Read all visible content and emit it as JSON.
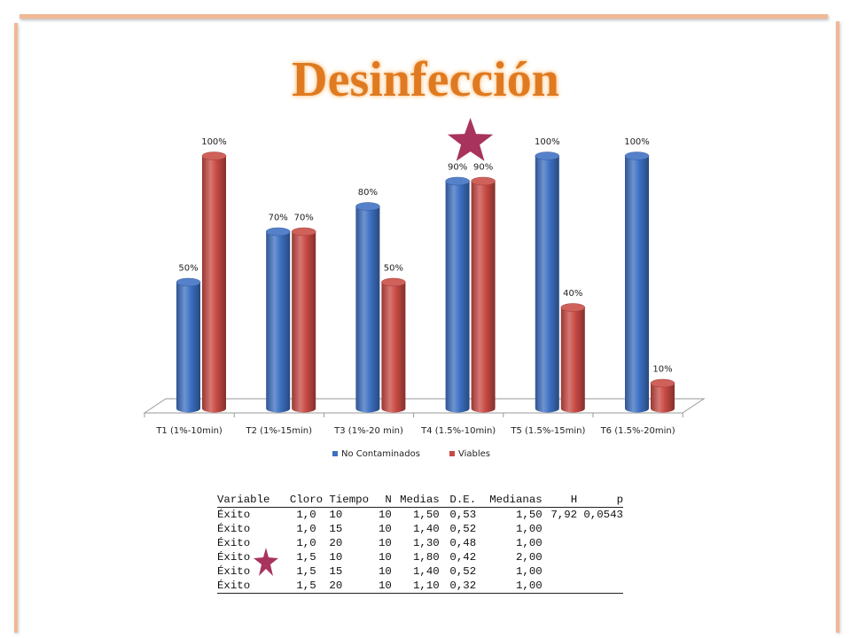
{
  "slide_title": "Desinfección",
  "chart_data": {
    "type": "bar",
    "categories": [
      "T1 (1%-10min)",
      "T2 (1%-15min)",
      "T3 (1%-20 min)",
      "T4 (1.5%-10min)",
      "T5 (1.5%-15min)",
      "T6 (1.5%-20min)"
    ],
    "series": [
      {
        "name": "No Contaminados",
        "color": "#3d70c2",
        "values": [
          50,
          70,
          80,
          90,
          100,
          100
        ],
        "labels": [
          "50%",
          "70%",
          "80%",
          "90%",
          "100%",
          "100%"
        ]
      },
      {
        "name": "Viables",
        "color": "#c94a44",
        "values": [
          100,
          70,
          50,
          90,
          40,
          10
        ],
        "labels": [
          "100%",
          "70%",
          "50%",
          "90%",
          "40%",
          "10%"
        ]
      }
    ],
    "ylim": [
      0,
      100
    ],
    "grid": false,
    "legend": "bottom",
    "three_d": true,
    "highlight": "T4 (1.5%-10min)"
  },
  "stats_table": {
    "headers": [
      "Variable",
      "Cloro",
      "Tiempo",
      "N",
      "Medias",
      "D.E.",
      "Medianas",
      "H",
      "p"
    ],
    "rows": [
      [
        "Éxito",
        "1,0",
        "10",
        "10",
        "1,50",
        "0,53",
        "1,50",
        "7,92",
        "0,0543"
      ],
      [
        "Éxito",
        "1,0",
        "15",
        "10",
        "1,40",
        "0,52",
        "1,00",
        "",
        ""
      ],
      [
        "Éxito",
        "1,0",
        "20",
        "10",
        "1,30",
        "0,48",
        "1,00",
        "",
        ""
      ],
      [
        "Éxito",
        "1,5",
        "10",
        "10",
        "1,80",
        "0,42",
        "2,00",
        "",
        ""
      ],
      [
        "Éxito",
        "1,5",
        "15",
        "10",
        "1,40",
        "0,52",
        "1,00",
        "",
        ""
      ],
      [
        "Éxito",
        "1,5",
        "20",
        "10",
        "1,10",
        "0,32",
        "1,00",
        "",
        ""
      ]
    ]
  },
  "colors": {
    "star": "#a8345e",
    "title": "#e07a20",
    "frame": "#f0b896"
  }
}
